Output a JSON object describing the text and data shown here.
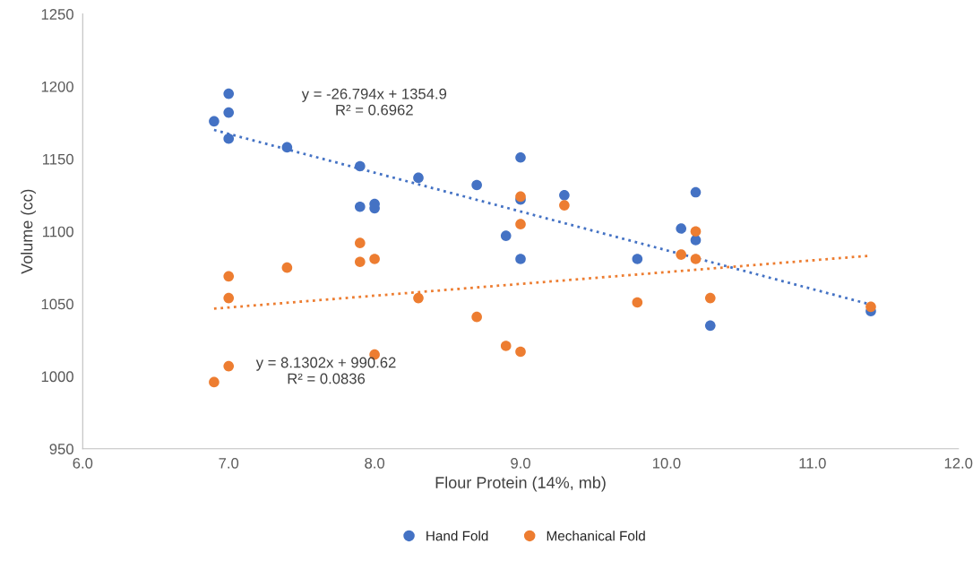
{
  "chart_data": {
    "type": "scatter",
    "xlabel": "Flour Protein (14%, mb)",
    "ylabel": "Volume (cc)",
    "xlim": [
      6,
      12
    ],
    "ylim": [
      950,
      1250
    ],
    "xticks": [
      {
        "value": 6,
        "label": "6.0"
      },
      {
        "value": 7,
        "label": "7.0"
      },
      {
        "value": 8,
        "label": "8.0"
      },
      {
        "value": 9,
        "label": "9.0"
      },
      {
        "value": 10,
        "label": "10.0"
      },
      {
        "value": 11,
        "label": "11.0"
      },
      {
        "value": 12,
        "label": "12.0"
      }
    ],
    "yticks": [
      950,
      1000,
      1050,
      1100,
      1150,
      1200,
      1250
    ],
    "grid": false,
    "legend": "bottom",
    "marker": "circle",
    "series": [
      {
        "name": "Hand Fold",
        "color": "#4472c4",
        "x": [
          6.9,
          7.0,
          7.0,
          7.0,
          7.4,
          7.9,
          7.9,
          8.0,
          8.0,
          8.3,
          8.7,
          8.9,
          9.0,
          9.0,
          9.0,
          9.3,
          9.8,
          10.1,
          10.2,
          10.2,
          10.3,
          11.4
        ],
        "values": [
          1176,
          1195,
          1182,
          1164,
          1158,
          1145,
          1117,
          1119,
          1116,
          1137,
          1132,
          1097,
          1151,
          1122,
          1081,
          1125,
          1081,
          1102,
          1127,
          1094,
          1035,
          1045
        ]
      },
      {
        "name": "Mechanical Fold",
        "color": "#ed7d31",
        "x": [
          6.9,
          7.0,
          7.0,
          7.0,
          7.4,
          7.9,
          7.9,
          8.0,
          8.0,
          8.3,
          8.7,
          8.9,
          9.0,
          9.0,
          9.0,
          9.3,
          9.8,
          10.1,
          10.2,
          10.2,
          10.3,
          11.4
        ],
        "values": [
          996,
          1007,
          1069,
          1054,
          1075,
          1092,
          1079,
          1081,
          1015,
          1054,
          1041,
          1021,
          1017,
          1124,
          1105,
          1118,
          1051,
          1084,
          1100,
          1081,
          1054,
          1048
        ]
      },
      {
        "type": "line",
        "color": "#4472c4",
        "line_style": "dotted",
        "marker": "none",
        "x": [
          6.9,
          11.4
        ],
        "values": [
          1170.0,
          1049.5
        ]
      },
      {
        "type": "line",
        "color": "#ed7d31",
        "line_style": "dotted",
        "marker": "none",
        "x": [
          6.9,
          11.4
        ],
        "values": [
          1046.7,
          1083.3
        ]
      }
    ],
    "annotations": [
      "y = -26.794x + 1354.9\nR² = 0.6962",
      "y = 8.1302x + 990.62\nR² = 0.0836"
    ]
  }
}
